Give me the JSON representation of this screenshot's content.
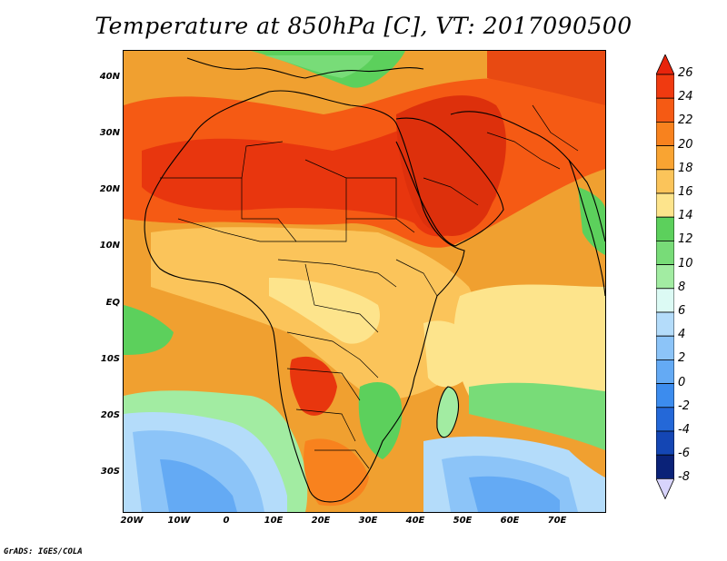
{
  "title": "Temperature at 850hPa [C], VT: 2017090500",
  "credit": "GrADS: IGES/COLA",
  "map": {
    "lon_range": [
      -22,
      80
    ],
    "lat_range": [
      -37,
      45
    ],
    "lat_labels": [
      "40N",
      "30N",
      "20N",
      "10N",
      "EQ",
      "10S",
      "20S",
      "30S"
    ],
    "lon_labels": [
      "20W",
      "10W",
      "0",
      "10E",
      "20E",
      "30E",
      "40E",
      "50E",
      "60E",
      "70E"
    ],
    "background_color": "#f0a030"
  },
  "colorbar": {
    "labels": [
      "26",
      "24",
      "22",
      "20",
      "18",
      "16",
      "14",
      "12",
      "10",
      "8",
      "6",
      "4",
      "2",
      "0",
      "-2",
      "-4",
      "-6",
      "-8"
    ],
    "colors": [
      "#f03a10",
      "#f55a14",
      "#f8821e",
      "#f9a432",
      "#fbc45a",
      "#fde48c",
      "#5cd05c",
      "#78dc78",
      "#a2eca2",
      "#dcfaf4",
      "#b4dcfa",
      "#8cc4f8",
      "#64aaf4",
      "#3c8cee",
      "#2468d8",
      "#1446b4",
      "#0a2278"
    ],
    "top_arrow_color": "#e8240c",
    "bottom_arrow_color": "#d8d4fc"
  }
}
